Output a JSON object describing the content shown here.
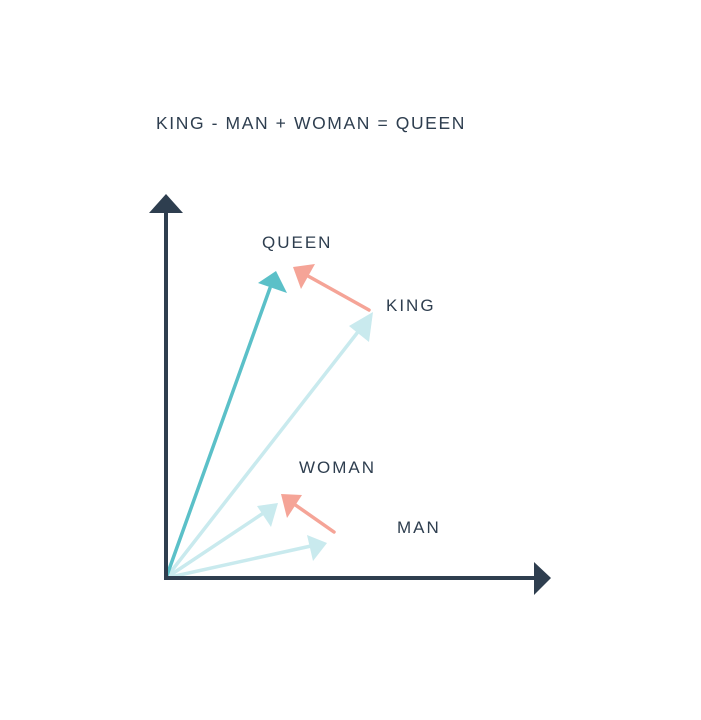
{
  "title": "KING - MAN + WOMAN = QUEEN",
  "labels": {
    "queen": "QUEEN",
    "king": "KING",
    "woman": "WOMAN",
    "man": "MAN"
  },
  "colors": {
    "axis": "#2e3e4f",
    "queen_vector": "#5bc0c8",
    "light_vector": "#c9eaee",
    "difference_vector": "#f5a497",
    "text": "#2e3e4f"
  }
}
